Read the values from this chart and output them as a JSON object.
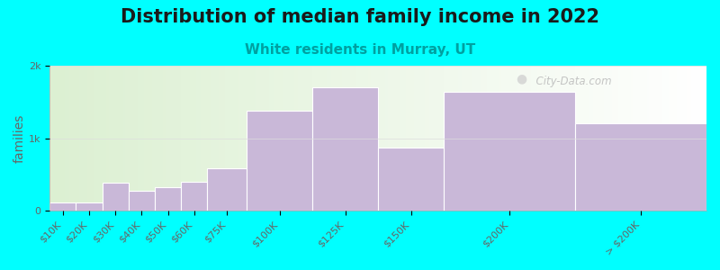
{
  "title": "Distribution of median family income in 2022",
  "subtitle": "White residents in Murray, UT",
  "ylabel": "families",
  "background_color": "#00FFFF",
  "bar_color": "#c9b8d8",
  "bar_edge_color": "#ffffff",
  "categories": [
    "$10K",
    "$20K",
    "$30K",
    "$40K",
    "$50K",
    "$60K",
    "$75K",
    "$100K",
    "$125K",
    "$150K",
    "$200K",
    "> $200K"
  ],
  "edges": [
    0,
    10,
    20,
    30,
    40,
    50,
    60,
    75,
    100,
    125,
    150,
    200,
    250
  ],
  "values": [
    120,
    110,
    390,
    280,
    320,
    400,
    580,
    1380,
    1700,
    870,
    1640,
    1210
  ],
  "ylim": [
    0,
    2000
  ],
  "ytick_labels": [
    "0",
    "1k",
    "2k"
  ],
  "ytick_vals": [
    0,
    1000,
    2000
  ],
  "title_fontsize": 15,
  "subtitle_fontsize": 11,
  "ylabel_fontsize": 10,
  "tick_fontsize": 8,
  "watermark_text": "  City-Data.com"
}
